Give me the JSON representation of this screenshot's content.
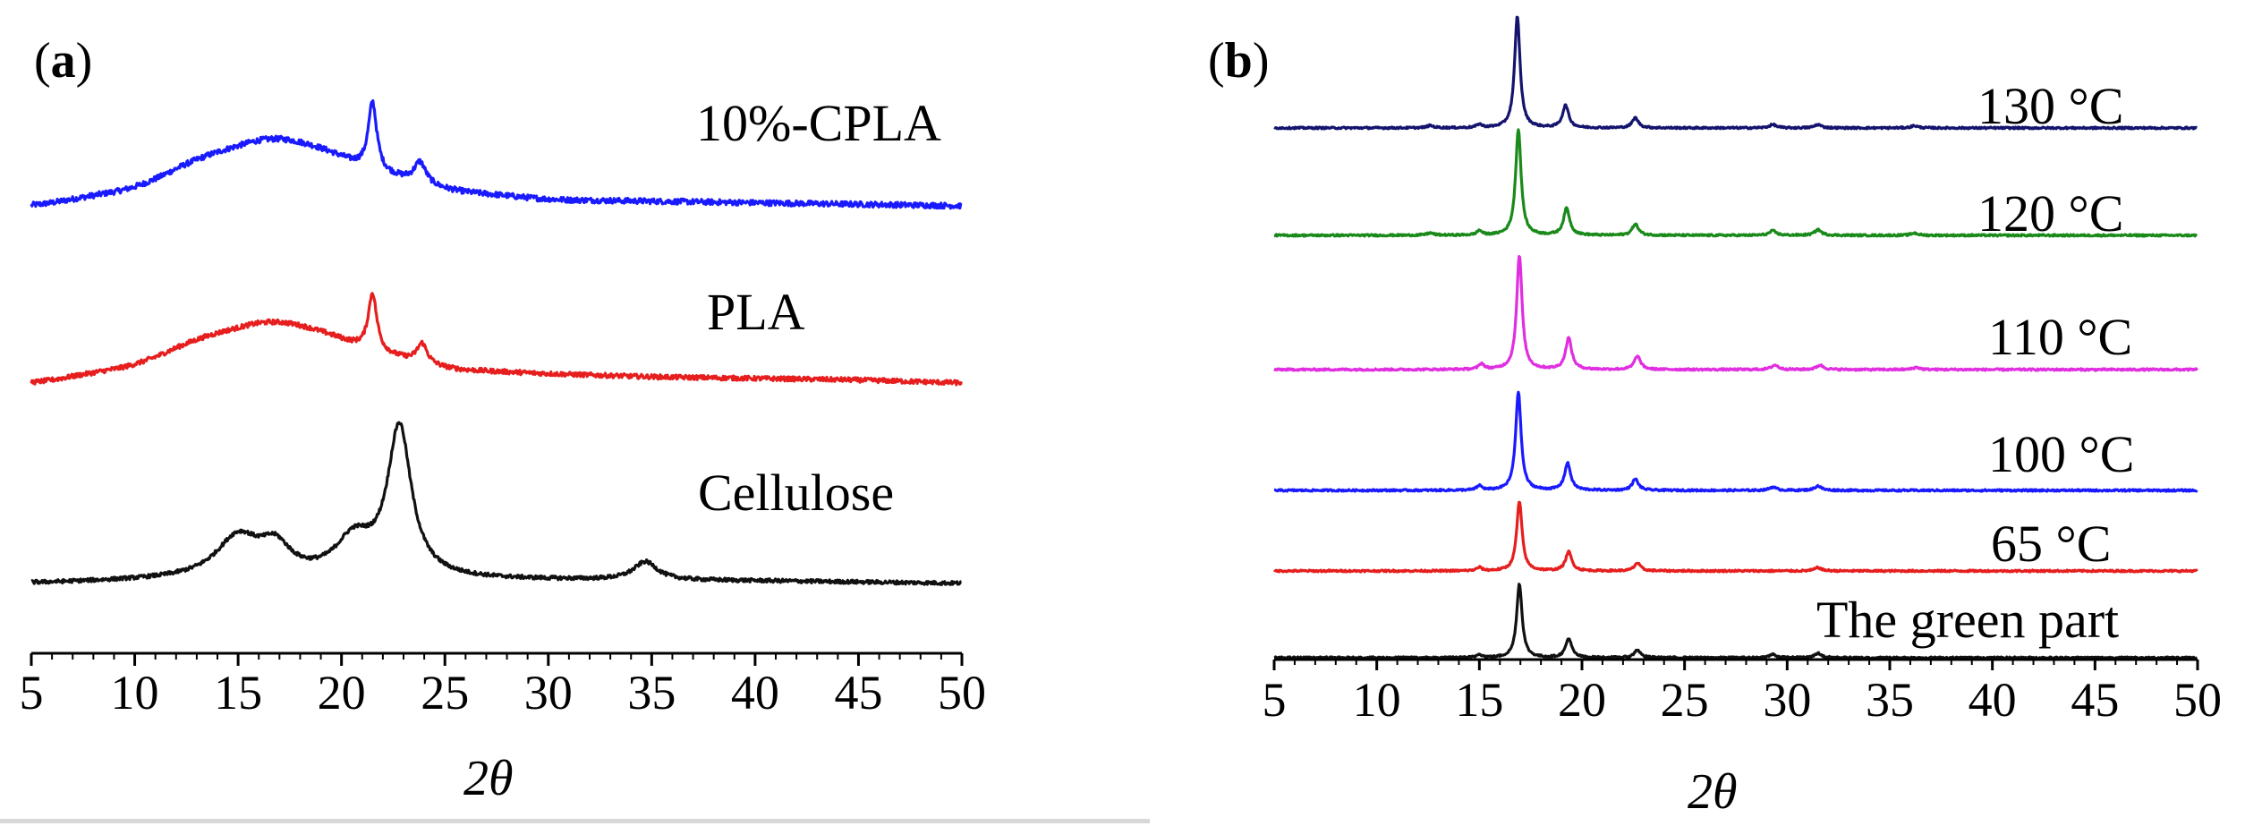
{
  "chart_data": [
    {
      "panel_label": "a",
      "type": "line",
      "xlabel": "2θ",
      "xlim": [
        5,
        50
      ],
      "xticks": [
        5,
        10,
        15,
        20,
        25,
        30,
        35,
        40,
        45,
        50
      ],
      "y_ticks_shown": false,
      "series": [
        {
          "name": "10%-CPLA",
          "color": "#1a1aff",
          "offset": 2,
          "noise": 0.018,
          "baseline": [
            [
              5,
              0.0
            ],
            [
              10,
              0.12
            ],
            [
              13,
              0.32
            ],
            [
              16.5,
              0.46
            ],
            [
              19,
              0.38
            ],
            [
              21,
              0.24
            ],
            [
              25,
              0.1
            ],
            [
              30,
              0.04
            ],
            [
              35,
              0.03
            ],
            [
              40,
              0.02
            ],
            [
              45,
              0.01
            ],
            [
              50,
              0.0
            ]
          ],
          "peaks": [
            [
              21.5,
              0.45,
              0.25
            ],
            [
              23.8,
              0.14,
              0.35
            ]
          ]
        },
        {
          "name": "PLA",
          "color": "#e61e1e",
          "offset": 1,
          "noise": 0.015,
          "baseline": [
            [
              5,
              0.0
            ],
            [
              10,
              0.12
            ],
            [
              13,
              0.3
            ],
            [
              16.5,
              0.42
            ],
            [
              19,
              0.34
            ],
            [
              21,
              0.22
            ],
            [
              25,
              0.09
            ],
            [
              30,
              0.06
            ],
            [
              35,
              0.04
            ],
            [
              40,
              0.03
            ],
            [
              45,
              0.02
            ],
            [
              50,
              0.0
            ]
          ],
          "peaks": [
            [
              21.5,
              0.38,
              0.25
            ],
            [
              23.9,
              0.13,
              0.3
            ]
          ]
        },
        {
          "name": "Cellulose",
          "color": "#111111",
          "offset": 0,
          "noise": 0.012,
          "baseline": [
            [
              5,
              0.0
            ],
            [
              12,
              0.02
            ],
            [
              20,
              0.02
            ],
            [
              30,
              0.02
            ],
            [
              40,
              0.015
            ],
            [
              50,
              0.0
            ]
          ],
          "peaks": [
            [
              15.0,
              0.27,
              1.3
            ],
            [
              16.8,
              0.18,
              0.9
            ],
            [
              20.6,
              0.24,
              1.1
            ],
            [
              22.8,
              0.98,
              0.7
            ],
            [
              34.7,
              0.12,
              0.7
            ]
          ]
        }
      ]
    },
    {
      "panel_label": "b",
      "type": "line",
      "xlabel": "2θ",
      "xlim": [
        5,
        50
      ],
      "xticks": [
        5,
        10,
        15,
        20,
        25,
        30,
        35,
        40,
        45,
        50
      ],
      "y_ticks_shown": false,
      "series": [
        {
          "name": "130 °C",
          "color": "#14146e",
          "offset": 5,
          "noise": 0.008,
          "peaks": [
            [
              16.85,
              1.0,
              0.16
            ],
            [
              19.2,
              0.2,
              0.18
            ],
            [
              22.6,
              0.09,
              0.18
            ],
            [
              15.0,
              0.03,
              0.15
            ],
            [
              29.3,
              0.03,
              0.2
            ],
            [
              31.5,
              0.03,
              0.2
            ],
            [
              36.2,
              0.02,
              0.2
            ],
            [
              12.6,
              0.02,
              0.2
            ]
          ]
        },
        {
          "name": "120 °C",
          "color": "#1a8a1a",
          "offset": 4,
          "noise": 0.008,
          "peaks": [
            [
              16.9,
              0.95,
              0.16
            ],
            [
              19.25,
              0.24,
              0.18
            ],
            [
              22.6,
              0.1,
              0.18
            ],
            [
              15.0,
              0.04,
              0.15
            ],
            [
              29.3,
              0.04,
              0.2
            ],
            [
              31.5,
              0.05,
              0.2
            ],
            [
              36.2,
              0.02,
              0.2
            ],
            [
              12.6,
              0.02,
              0.2
            ]
          ]
        },
        {
          "name": "110 °C",
          "color": "#e02ee0",
          "offset": 3,
          "noise": 0.008,
          "peaks": [
            [
              16.95,
              1.02,
              0.16
            ],
            [
              19.35,
              0.28,
              0.18
            ],
            [
              22.7,
              0.12,
              0.18
            ],
            [
              15.1,
              0.05,
              0.15
            ],
            [
              29.4,
              0.04,
              0.2
            ],
            [
              31.6,
              0.04,
              0.2
            ],
            [
              36.3,
              0.02,
              0.2
            ]
          ]
        },
        {
          "name": "100 °C",
          "color": "#1a1aff",
          "offset": 2,
          "noise": 0.008,
          "peaks": [
            [
              16.9,
              0.88,
              0.16
            ],
            [
              19.3,
              0.24,
              0.18
            ],
            [
              22.6,
              0.1,
              0.18
            ],
            [
              15.0,
              0.04,
              0.15
            ],
            [
              29.3,
              0.03,
              0.2
            ],
            [
              31.5,
              0.04,
              0.2
            ]
          ]
        },
        {
          "name": "65 °C",
          "color": "#e61e1e",
          "offset": 1.2,
          "noise": 0.008,
          "peaks": [
            [
              16.95,
              0.62,
              0.16
            ],
            [
              19.35,
              0.17,
              0.18
            ],
            [
              22.7,
              0.07,
              0.18
            ],
            [
              15.0,
              0.03,
              0.15
            ],
            [
              31.5,
              0.03,
              0.2
            ]
          ]
        },
        {
          "name": "The green part",
          "color": "#111111",
          "offset": 0,
          "noise": 0.008,
          "peaks": [
            [
              16.95,
              0.66,
              0.16
            ],
            [
              19.35,
              0.17,
              0.18
            ],
            [
              22.7,
              0.07,
              0.18
            ],
            [
              15.0,
              0.03,
              0.15
            ],
            [
              29.3,
              0.03,
              0.2
            ],
            [
              31.5,
              0.04,
              0.2
            ]
          ]
        }
      ]
    }
  ]
}
